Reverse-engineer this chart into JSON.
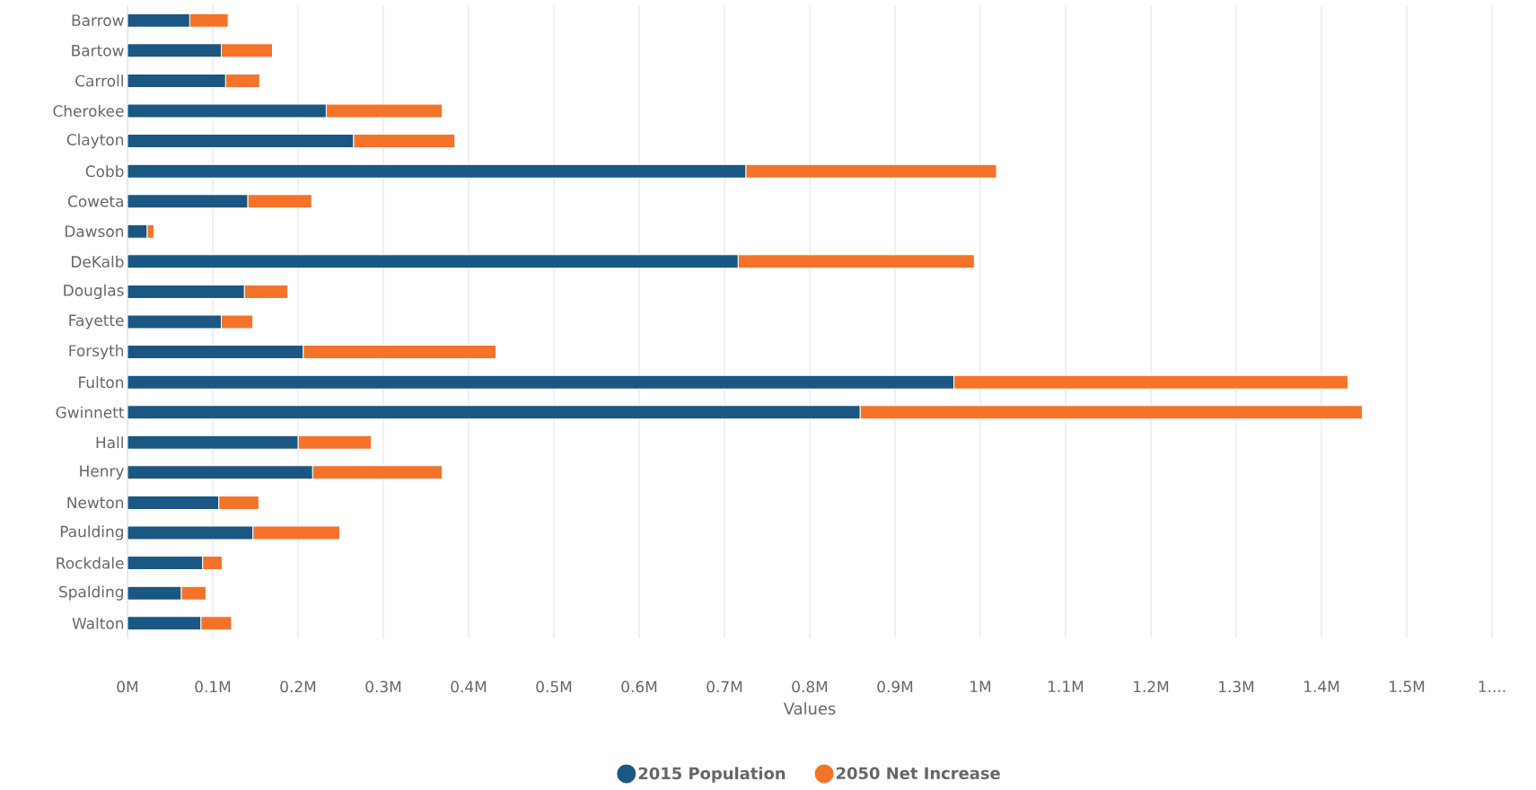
{
  "chart_data": {
    "type": "bar",
    "orientation": "horizontal",
    "stacked": true,
    "xlabel": "Values",
    "categories": [
      "Barrow",
      "Bartow",
      "Carroll",
      "Cherokee",
      "Clayton",
      "Cobb",
      "Coweta",
      "Dawson",
      "DeKalb",
      "Douglas",
      "Fayette",
      "Forsyth",
      "Fulton",
      "Gwinnett",
      "Hall",
      "Henry",
      "Newton",
      "Paulding",
      "Rockdale",
      "Spalding",
      "Walton"
    ],
    "series": [
      {
        "name": "2015 Population",
        "color": "#1a5782",
        "values": [
          0.073,
          0.11,
          0.115,
          0.233,
          0.265,
          0.725,
          0.141,
          0.023,
          0.716,
          0.137,
          0.11,
          0.206,
          0.969,
          0.859,
          0.2,
          0.217,
          0.107,
          0.147,
          0.088,
          0.063,
          0.086
        ]
      },
      {
        "name": "2050 Net Increase",
        "color": "#f47328",
        "values": [
          0.045,
          0.06,
          0.04,
          0.136,
          0.119,
          0.294,
          0.075,
          0.008,
          0.277,
          0.051,
          0.037,
          0.226,
          0.462,
          0.589,
          0.086,
          0.152,
          0.047,
          0.102,
          0.023,
          0.029,
          0.036
        ]
      }
    ],
    "xlim": [
      0,
      1.6
    ],
    "xticks": [
      {
        "value": 0,
        "label": "0M"
      },
      {
        "value": 0.1,
        "label": "0.1M"
      },
      {
        "value": 0.2,
        "label": "0.2M"
      },
      {
        "value": 0.3,
        "label": "0.3M"
      },
      {
        "value": 0.4,
        "label": "0.4M"
      },
      {
        "value": 0.5,
        "label": "0.5M"
      },
      {
        "value": 0.6,
        "label": "0.6M"
      },
      {
        "value": 0.7,
        "label": "0.7M"
      },
      {
        "value": 0.8,
        "label": "0.8M"
      },
      {
        "value": 0.9,
        "label": "0.9M"
      },
      {
        "value": 1,
        "label": "1M"
      },
      {
        "value": 1.1,
        "label": "1.1M"
      },
      {
        "value": 1.2,
        "label": "1.2M"
      },
      {
        "value": 1.3,
        "label": "1.3M"
      },
      {
        "value": 1.4,
        "label": "1.4M"
      },
      {
        "value": 1.5,
        "label": "1.5M"
      },
      {
        "value": 1.6,
        "label": "1...."
      }
    ],
    "grid": "x",
    "legend": "bottom",
    "marker": "circle"
  }
}
